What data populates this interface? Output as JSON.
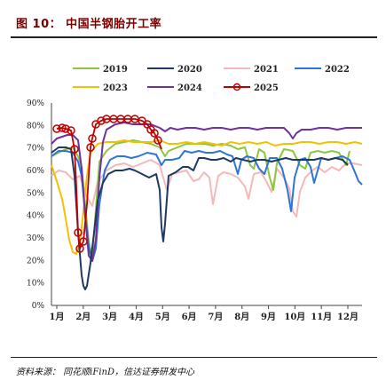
{
  "title": "图 10： 中国半钢胎开工率",
  "source": "资料来源： 同花顺iFinD，信达证券研发中心",
  "chart_data": {
    "type": "line",
    "title": "图 10： 中国半钢胎开工率",
    "xlabel": "",
    "ylabel": "",
    "x_ticks": [
      "1月",
      "2月",
      "3月",
      "4月",
      "5月",
      "6月",
      "7月",
      "8月",
      "9月",
      "10月",
      "11月",
      "12月"
    ],
    "y_ticks": [
      "0%",
      "10%",
      "20%",
      "30%",
      "40%",
      "50%",
      "60%",
      "70%",
      "80%",
      "90%"
    ],
    "ylim": [
      0,
      90
    ],
    "grid": false,
    "legend_position": "top",
    "series": [
      {
        "name": "2019",
        "color": "#8dc63f"
      },
      {
        "name": "2020",
        "color": "#1f3864"
      },
      {
        "name": "2021",
        "color": "#f4b8b8"
      },
      {
        "name": "2022",
        "color": "#2e75d6"
      },
      {
        "name": "2023",
        "color": "#f5c000"
      },
      {
        "name": "2024",
        "color": "#7030a0"
      },
      {
        "name": "2025",
        "color": "#c00000"
      }
    ]
  }
}
